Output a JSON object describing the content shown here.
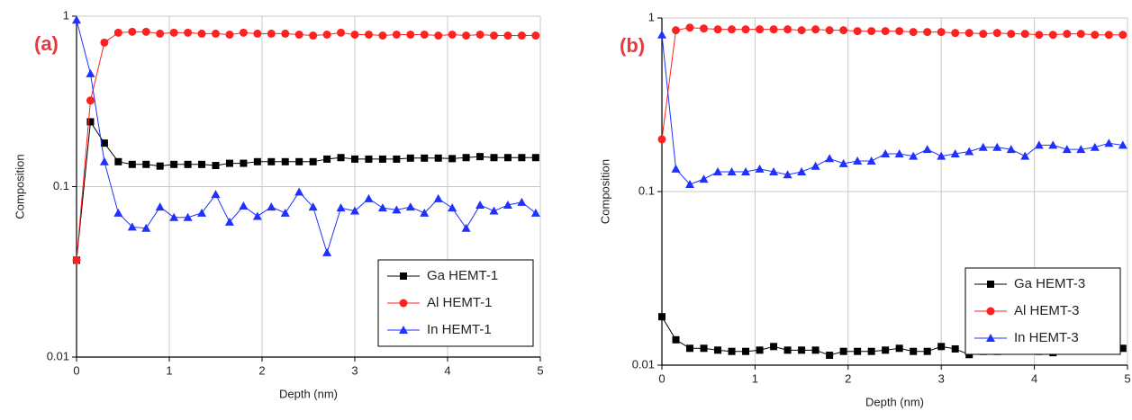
{
  "chart_data": [
    {
      "type": "line",
      "annotation": "(a)",
      "x_label": "Depth (nm)",
      "y_label": "Composition",
      "yscale": "log",
      "grid": true,
      "legend": "lower right",
      "xlim": [
        0,
        5
      ],
      "xticks": [
        0,
        1,
        2,
        3,
        4,
        5
      ],
      "ylim": [
        0.01,
        1
      ],
      "yticks": [
        0.01,
        0.1,
        1
      ],
      "x": [
        0,
        0.15,
        0.3,
        0.45,
        0.6,
        0.75,
        0.9,
        1.05,
        1.2,
        1.35,
        1.5,
        1.65,
        1.8,
        1.95,
        2.1,
        2.25,
        2.4,
        2.55,
        2.7,
        2.85,
        3,
        3.15,
        3.3,
        3.45,
        3.6,
        3.75,
        3.9,
        4.05,
        4.2,
        4.35,
        4.5,
        4.65,
        4.8,
        4.95
      ],
      "series": [
        {
          "name": "Ga HEMT-1",
          "color": "#000000",
          "marker": "square",
          "values": [
            0.037,
            0.24,
            0.18,
            0.14,
            0.135,
            0.135,
            0.132,
            0.135,
            0.135,
            0.135,
            0.133,
            0.137,
            0.137,
            0.14,
            0.14,
            0.14,
            0.14,
            0.14,
            0.145,
            0.148,
            0.145,
            0.145,
            0.145,
            0.145,
            0.147,
            0.147,
            0.147,
            0.146,
            0.148,
            0.15,
            0.148,
            0.148,
            0.148,
            0.148
          ]
        },
        {
          "name": "Al HEMT-1",
          "color": "#ff2020",
          "marker": "circle",
          "values": [
            0.037,
            0.32,
            0.7,
            0.8,
            0.81,
            0.81,
            0.79,
            0.8,
            0.8,
            0.79,
            0.79,
            0.78,
            0.8,
            0.79,
            0.79,
            0.79,
            0.78,
            0.77,
            0.78,
            0.8,
            0.78,
            0.78,
            0.77,
            0.78,
            0.78,
            0.78,
            0.77,
            0.78,
            0.77,
            0.78,
            0.77,
            0.77,
            0.77,
            0.77
          ]
        },
        {
          "name": "In HEMT-1",
          "color": "#2030ff",
          "marker": "triangle",
          "values": [
            0.95,
            0.46,
            0.14,
            0.07,
            0.058,
            0.057,
            0.076,
            0.066,
            0.066,
            0.07,
            0.09,
            0.062,
            0.077,
            0.067,
            0.076,
            0.07,
            0.093,
            0.076,
            0.041,
            0.075,
            0.072,
            0.085,
            0.075,
            0.073,
            0.076,
            0.07,
            0.085,
            0.075,
            0.057,
            0.078,
            0.072,
            0.078,
            0.081,
            0.07
          ]
        }
      ]
    },
    {
      "type": "line",
      "annotation": "(b)",
      "x_label": "Depth (nm)",
      "y_label": "Composition",
      "yscale": "log",
      "grid": true,
      "legend": "lower right",
      "xlim": [
        0,
        5
      ],
      "xticks": [
        0,
        1,
        2,
        3,
        4,
        5
      ],
      "ylim": [
        0.01,
        1
      ],
      "yticks": [
        0.01,
        0.1,
        1
      ],
      "x": [
        0,
        0.15,
        0.3,
        0.45,
        0.6,
        0.75,
        0.9,
        1.05,
        1.2,
        1.35,
        1.5,
        1.65,
        1.8,
        1.95,
        2.1,
        2.25,
        2.4,
        2.55,
        2.7,
        2.85,
        3,
        3.15,
        3.3,
        3.45,
        3.6,
        3.75,
        3.9,
        4.05,
        4.2,
        4.35,
        4.5,
        4.65,
        4.8,
        4.95
      ],
      "series": [
        {
          "name": "Ga HEMT-3",
          "color": "#000000",
          "marker": "square",
          "values": [
            0.019,
            0.014,
            0.0125,
            0.0125,
            0.0122,
            0.012,
            0.012,
            0.0122,
            0.0128,
            0.0122,
            0.0122,
            0.0122,
            0.0114,
            0.012,
            0.012,
            0.012,
            0.0122,
            0.0125,
            0.012,
            0.012,
            0.0128,
            0.0124,
            0.0115,
            0.012,
            0.012,
            0.0125,
            0.0125,
            0.012,
            0.0118,
            0.0123,
            0.0125,
            0.0125,
            0.0122,
            0.0125
          ]
        },
        {
          "name": "Al HEMT-3",
          "color": "#ff2020",
          "marker": "circle",
          "values": [
            0.2,
            0.85,
            0.88,
            0.87,
            0.86,
            0.86,
            0.86,
            0.86,
            0.86,
            0.86,
            0.85,
            0.86,
            0.85,
            0.85,
            0.84,
            0.84,
            0.84,
            0.84,
            0.83,
            0.83,
            0.83,
            0.82,
            0.82,
            0.81,
            0.82,
            0.81,
            0.81,
            0.8,
            0.8,
            0.81,
            0.81,
            0.8,
            0.8,
            0.8
          ]
        },
        {
          "name": "In HEMT-3",
          "color": "#2030ff",
          "marker": "triangle",
          "values": [
            0.8,
            0.135,
            0.11,
            0.118,
            0.13,
            0.13,
            0.13,
            0.135,
            0.13,
            0.125,
            0.13,
            0.14,
            0.155,
            0.145,
            0.15,
            0.15,
            0.165,
            0.165,
            0.16,
            0.175,
            0.16,
            0.165,
            0.17,
            0.18,
            0.18,
            0.175,
            0.16,
            0.185,
            0.185,
            0.175,
            0.175,
            0.18,
            0.19,
            0.185
          ]
        }
      ]
    }
  ]
}
